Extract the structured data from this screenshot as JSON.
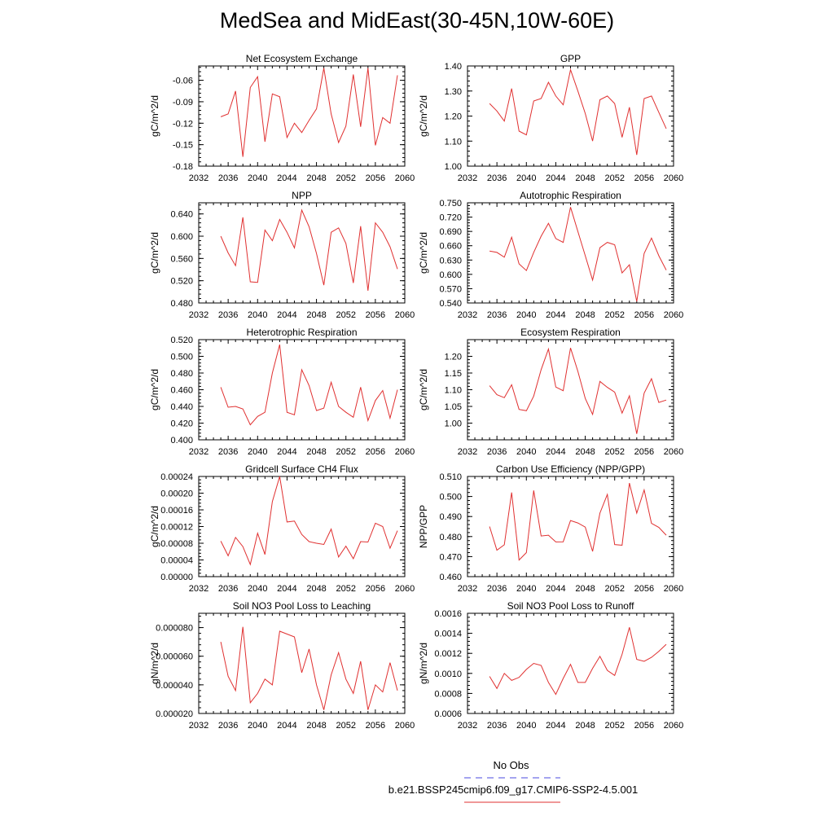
{
  "title": "MedSea and MidEast(30-45N,10W-60E)",
  "legend": {
    "obs_label": "No Obs",
    "obs_color": "#4a4adf",
    "model_label": "b.e21.BSSP245cmip6.f09_g17.CMIP6-SSP2-4.5.001",
    "model_color": "#e03030"
  },
  "chart_data": [
    {
      "type": "line",
      "title": "Net Ecosystem Exchange",
      "ylabel": "gC/m^2/d",
      "xlim": [
        2032,
        2060
      ],
      "xticks": [
        "2032",
        "2036",
        "2040",
        "2044",
        "2048",
        "2052",
        "2056",
        "2060"
      ],
      "ylim": [
        -0.18,
        -0.04
      ],
      "yticks": [
        "-0.18",
        "-0.15",
        "-0.12",
        "-0.09",
        "-0.06"
      ],
      "series": [
        {
          "x": [
            2035,
            2036,
            2037,
            2038,
            2039,
            2040,
            2041,
            2042,
            2043,
            2044,
            2045,
            2046,
            2047,
            2048,
            2049,
            2050,
            2051,
            2052,
            2053,
            2054,
            2055,
            2056,
            2057,
            2058,
            2059
          ],
          "y": [
            -0.111,
            -0.107,
            -0.075,
            -0.167,
            -0.07,
            -0.055,
            -0.146,
            -0.079,
            -0.083,
            -0.14,
            -0.12,
            -0.133,
            -0.116,
            -0.1,
            -0.043,
            -0.107,
            -0.147,
            -0.124,
            -0.052,
            -0.125,
            -0.043,
            -0.151,
            -0.112,
            -0.12,
            -0.053
          ]
        }
      ]
    },
    {
      "type": "line",
      "title": "GPP",
      "ylabel": "gC/m^2/d",
      "xlim": [
        2032,
        2060
      ],
      "xticks": [
        "2032",
        "2036",
        "2040",
        "2044",
        "2048",
        "2052",
        "2056",
        "2060"
      ],
      "ylim": [
        1.0,
        1.4
      ],
      "yticks": [
        "1.00",
        "1.10",
        "1.20",
        "1.30",
        "1.40"
      ],
      "series": [
        {
          "x": [
            2035,
            2036,
            2037,
            2038,
            2039,
            2040,
            2041,
            2042,
            2043,
            2044,
            2045,
            2046,
            2047,
            2048,
            2049,
            2050,
            2051,
            2052,
            2053,
            2054,
            2055,
            2056,
            2057,
            2058,
            2059
          ],
          "y": [
            1.25,
            1.22,
            1.18,
            1.31,
            1.14,
            1.125,
            1.26,
            1.27,
            1.335,
            1.28,
            1.245,
            1.385,
            1.3,
            1.21,
            1.1,
            1.265,
            1.28,
            1.25,
            1.115,
            1.235,
            1.045,
            1.27,
            1.28,
            1.215,
            1.15
          ]
        }
      ]
    },
    {
      "type": "line",
      "title": "NPP",
      "ylabel": "gC/m^2/d",
      "xlim": [
        2032,
        2060
      ],
      "xticks": [
        "2032",
        "2036",
        "2040",
        "2044",
        "2048",
        "2052",
        "2056",
        "2060"
      ],
      "ylim": [
        0.48,
        0.66
      ],
      "yticks": [
        "0.480",
        "0.520",
        "0.560",
        "0.600",
        "0.640"
      ],
      "series": [
        {
          "x": [
            2035,
            2036,
            2037,
            2038,
            2039,
            2040,
            2041,
            2042,
            2043,
            2044,
            2045,
            2046,
            2047,
            2048,
            2049,
            2050,
            2051,
            2052,
            2053,
            2054,
            2055,
            2056,
            2057,
            2058,
            2059
          ],
          "y": [
            0.6,
            0.57,
            0.547,
            0.634,
            0.518,
            0.517,
            0.611,
            0.592,
            0.63,
            0.607,
            0.579,
            0.647,
            0.617,
            0.569,
            0.512,
            0.607,
            0.615,
            0.587,
            0.516,
            0.618,
            0.502,
            0.624,
            0.607,
            0.581,
            0.541
          ]
        }
      ]
    },
    {
      "type": "line",
      "title": "Autotrophic Respiration",
      "ylabel": "gC/m^2/d",
      "xlim": [
        2032,
        2060
      ],
      "xticks": [
        "2032",
        "2036",
        "2040",
        "2044",
        "2048",
        "2052",
        "2056",
        "2060"
      ],
      "ylim": [
        0.54,
        0.75
      ],
      "yticks": [
        "0.540",
        "0.570",
        "0.600",
        "0.630",
        "0.660",
        "0.690",
        "0.720",
        "0.750"
      ],
      "series": [
        {
          "x": [
            2035,
            2036,
            2037,
            2038,
            2039,
            2040,
            2041,
            2042,
            2043,
            2044,
            2045,
            2046,
            2047,
            2048,
            2049,
            2050,
            2051,
            2052,
            2053,
            2054,
            2055,
            2056,
            2057,
            2058,
            2059
          ],
          "y": [
            0.649,
            0.646,
            0.636,
            0.678,
            0.622,
            0.608,
            0.646,
            0.68,
            0.707,
            0.675,
            0.667,
            0.741,
            0.69,
            0.639,
            0.588,
            0.656,
            0.667,
            0.662,
            0.603,
            0.62,
            0.543,
            0.644,
            0.676,
            0.639,
            0.609
          ]
        }
      ]
    },
    {
      "type": "line",
      "title": "Heterotrophic Respiration",
      "ylabel": "gC/m^2/d",
      "xlim": [
        2032,
        2060
      ],
      "xticks": [
        "2032",
        "2036",
        "2040",
        "2044",
        "2048",
        "2052",
        "2056",
        "2060"
      ],
      "ylim": [
        0.4,
        0.52
      ],
      "yticks": [
        "0.400",
        "0.420",
        "0.440",
        "0.460",
        "0.480",
        "0.500",
        "0.520"
      ],
      "series": [
        {
          "x": [
            2035,
            2036,
            2037,
            2038,
            2039,
            2040,
            2041,
            2042,
            2043,
            2044,
            2045,
            2046,
            2047,
            2048,
            2049,
            2050,
            2051,
            2052,
            2053,
            2054,
            2055,
            2056,
            2057,
            2058,
            2059
          ],
          "y": [
            0.463,
            0.439,
            0.44,
            0.437,
            0.418,
            0.428,
            0.433,
            0.48,
            0.514,
            0.433,
            0.43,
            0.484,
            0.465,
            0.435,
            0.438,
            0.469,
            0.44,
            0.433,
            0.427,
            0.463,
            0.423,
            0.447,
            0.459,
            0.426,
            0.46
          ]
        }
      ]
    },
    {
      "type": "line",
      "title": "Ecosystem Respiration",
      "ylabel": "gC/m^2/d",
      "xlim": [
        2032,
        2060
      ],
      "xticks": [
        "2032",
        "2036",
        "2040",
        "2044",
        "2048",
        "2052",
        "2056",
        "2060"
      ],
      "ylim": [
        0.95,
        1.25
      ],
      "yticks": [
        "1.00",
        "1.05",
        "1.10",
        "1.15",
        "1.20"
      ],
      "series": [
        {
          "x": [
            2035,
            2036,
            2037,
            2038,
            2039,
            2040,
            2041,
            2042,
            2043,
            2044,
            2045,
            2046,
            2047,
            2048,
            2049,
            2050,
            2051,
            2052,
            2053,
            2054,
            2055,
            2056,
            2057,
            2058,
            2059
          ],
          "y": [
            1.112,
            1.085,
            1.076,
            1.115,
            1.041,
            1.037,
            1.081,
            1.16,
            1.222,
            1.108,
            1.097,
            1.225,
            1.155,
            1.074,
            1.026,
            1.125,
            1.107,
            1.093,
            1.03,
            1.082,
            0.968,
            1.09,
            1.133,
            1.062,
            1.069
          ]
        }
      ]
    },
    {
      "type": "line",
      "title": "Gridcell Surface CH4 Flux",
      "ylabel": "gC/m^2/d",
      "xlim": [
        2032,
        2060
      ],
      "xticks": [
        "2032",
        "2036",
        "2040",
        "2044",
        "2048",
        "2052",
        "2056",
        "2060"
      ],
      "ylim": [
        0.0,
        0.00024
      ],
      "yticks": [
        "0.00000",
        "0.00004",
        "0.00008",
        "0.00012",
        "0.00016",
        "0.00020",
        "0.00024"
      ],
      "series": [
        {
          "x": [
            2035,
            2036,
            2037,
            2038,
            2039,
            2040,
            2041,
            2042,
            2043,
            2044,
            2045,
            2046,
            2047,
            2048,
            2049,
            2050,
            2051,
            2052,
            2053,
            2054,
            2055,
            2056,
            2057,
            2058,
            2059
          ],
          "y": [
            8.5e-05,
            5e-05,
            9.4e-05,
            7.2e-05,
            2.9e-05,
            0.000104,
            5.3e-05,
            0.00018,
            0.00024,
            0.000131,
            0.000133,
            0.000101,
            8.4e-05,
            8e-05,
            7.7e-05,
            0.000114,
            4.7e-05,
            7.3e-05,
            4.3e-05,
            8.4e-05,
            8.3e-05,
            0.000128,
            0.00012,
            6.8e-05,
            0.00011
          ]
        }
      ]
    },
    {
      "type": "line",
      "title": "Carbon Use Efficiency (NPP/GPP)",
      "ylabel": "NPP/GPP",
      "xlim": [
        2032,
        2060
      ],
      "xticks": [
        "2032",
        "2036",
        "2040",
        "2044",
        "2048",
        "2052",
        "2056",
        "2060"
      ],
      "ylim": [
        0.46,
        0.51
      ],
      "yticks": [
        "0.460",
        "0.470",
        "0.480",
        "0.490",
        "0.500",
        "0.510"
      ],
      "series": [
        {
          "x": [
            2035,
            2036,
            2037,
            2038,
            2039,
            2040,
            2041,
            2042,
            2043,
            2044,
            2045,
            2046,
            2047,
            2048,
            2049,
            2050,
            2051,
            2052,
            2053,
            2054,
            2055,
            2056,
            2057,
            2058,
            2059
          ],
          "y": [
            0.485,
            0.4732,
            0.4759,
            0.502,
            0.4683,
            0.472,
            0.503,
            0.4803,
            0.4807,
            0.4773,
            0.4774,
            0.488,
            0.4868,
            0.4847,
            0.4726,
            0.4917,
            0.501,
            0.476,
            0.4757,
            0.5067,
            0.4917,
            0.5033,
            0.4866,
            0.4846,
            0.4807
          ]
        }
      ]
    },
    {
      "type": "line",
      "title": "Soil NO3 Pool Loss to Leaching",
      "ylabel": "gN/m^2/d",
      "xlim": [
        2032,
        2060
      ],
      "xticks": [
        "2032",
        "2036",
        "2040",
        "2044",
        "2048",
        "2052",
        "2056",
        "2060"
      ],
      "ylim": [
        2e-05,
        9e-05
      ],
      "yticks": [
        "0.000020",
        "0.000040",
        "0.000060",
        "0.000080"
      ],
      "series": [
        {
          "x": [
            2035,
            2036,
            2037,
            2038,
            2039,
            2040,
            2041,
            2042,
            2043,
            2044,
            2045,
            2046,
            2047,
            2048,
            2049,
            2050,
            2051,
            2052,
            2053,
            2054,
            2055,
            2056,
            2057,
            2058,
            2059
          ],
          "y": [
            7e-05,
            4.6e-05,
            3.6e-05,
            8.05e-05,
            2.75e-05,
            3.4e-05,
            4.4e-05,
            4e-05,
            7.75e-05,
            7.55e-05,
            7.35e-05,
            4.85e-05,
            6.5e-05,
            4e-05,
            2.25e-05,
            4.7e-05,
            6.25e-05,
            4.4e-05,
            3.4e-05,
            5.65e-05,
            2.25e-05,
            4e-05,
            3.5e-05,
            5.55e-05,
            3.6e-05
          ]
        }
      ]
    },
    {
      "type": "line",
      "title": "Soil NO3 Pool Loss to Runoff",
      "ylabel": "gN/m^2/d",
      "xlim": [
        2032,
        2060
      ],
      "xticks": [
        "2032",
        "2036",
        "2040",
        "2044",
        "2048",
        "2052",
        "2056",
        "2060"
      ],
      "ylim": [
        0.0006,
        0.0016
      ],
      "yticks": [
        "0.0006",
        "0.0008",
        "0.0010",
        "0.0012",
        "0.0014",
        "0.0016"
      ],
      "series": [
        {
          "x": [
            2035,
            2036,
            2037,
            2038,
            2039,
            2040,
            2041,
            2042,
            2043,
            2044,
            2045,
            2046,
            2047,
            2048,
            2049,
            2050,
            2051,
            2052,
            2053,
            2054,
            2055,
            2056,
            2057,
            2058,
            2059
          ],
          "y": [
            0.00097,
            0.00085,
            0.001,
            0.00093,
            0.00096,
            0.00104,
            0.0011,
            0.00108,
            0.00091,
            0.00079,
            0.00095,
            0.00109,
            0.00091,
            0.00091,
            0.00105,
            0.00117,
            0.00103,
            0.00098,
            0.00119,
            0.00146,
            0.00114,
            0.00112,
            0.00116,
            0.00122,
            0.00129
          ]
        }
      ]
    }
  ]
}
